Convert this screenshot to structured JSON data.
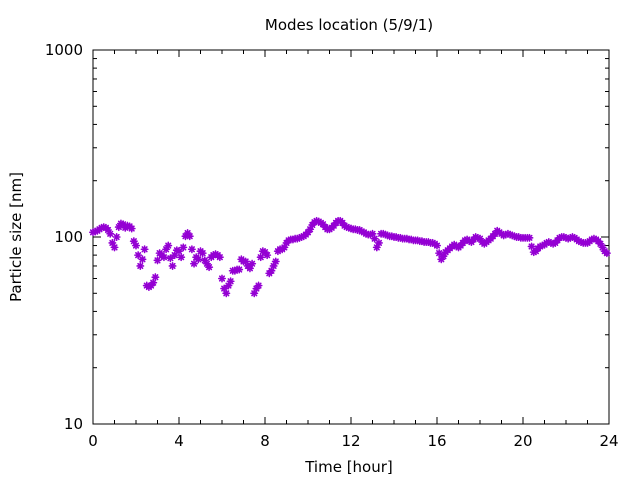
{
  "chart_data": {
    "type": "scatter",
    "title": "Modes location (5/9/1)",
    "xlabel": "Time [hour]",
    "ylabel": "Particle size [nm]",
    "xlim": [
      0,
      24
    ],
    "ylim": [
      10,
      1000
    ],
    "yscale": "log",
    "grid": false,
    "legend": "none",
    "marker": "asterisk",
    "color": "#9400d3",
    "x_ticks": [
      0,
      4,
      8,
      12,
      16,
      20,
      24
    ],
    "x_tick_labels": [
      "0",
      "4",
      "8",
      "12",
      "16",
      "20",
      "24"
    ],
    "y_ticks": [
      10,
      100,
      1000
    ],
    "y_tick_labels": [
      "10",
      "100",
      "1000"
    ],
    "series": [
      {
        "points": [
          [
            0.0,
            106
          ],
          [
            0.1,
            107
          ],
          [
            0.2,
            108
          ],
          [
            0.3,
            110
          ],
          [
            0.4,
            112
          ],
          [
            0.5,
            113
          ],
          [
            0.6,
            112
          ],
          [
            0.7,
            109
          ],
          [
            0.8,
            104
          ],
          [
            0.9,
            93
          ],
          [
            1.0,
            88
          ],
          [
            1.1,
            100
          ],
          [
            1.2,
            113
          ],
          [
            1.3,
            118
          ],
          [
            1.4,
            117
          ],
          [
            1.5,
            112
          ],
          [
            1.6,
            115
          ],
          [
            1.7,
            114
          ],
          [
            1.8,
            111
          ],
          [
            1.9,
            95
          ],
          [
            2.0,
            90
          ],
          [
            2.1,
            80
          ],
          [
            2.2,
            70
          ],
          [
            2.3,
            76
          ],
          [
            2.4,
            86
          ],
          [
            2.5,
            55
          ],
          [
            2.6,
            54
          ],
          [
            2.7,
            55
          ],
          [
            2.8,
            57
          ],
          [
            2.9,
            61
          ],
          [
            3.0,
            75
          ],
          [
            3.1,
            82
          ],
          [
            3.2,
            80
          ],
          [
            3.3,
            78
          ],
          [
            3.4,
            86
          ],
          [
            3.5,
            90
          ],
          [
            3.6,
            77
          ],
          [
            3.7,
            70
          ],
          [
            3.8,
            80
          ],
          [
            3.9,
            85
          ],
          [
            4.0,
            84
          ],
          [
            4.1,
            78
          ],
          [
            4.2,
            88
          ],
          [
            4.3,
            101
          ],
          [
            4.4,
            105
          ],
          [
            4.5,
            101
          ],
          [
            4.6,
            86
          ],
          [
            4.7,
            72
          ],
          [
            4.8,
            78
          ],
          [
            4.9,
            76
          ],
          [
            5.0,
            84
          ],
          [
            5.1,
            82
          ],
          [
            5.2,
            75
          ],
          [
            5.3,
            72
          ],
          [
            5.4,
            69
          ],
          [
            5.5,
            78
          ],
          [
            5.6,
            80
          ],
          [
            5.7,
            81
          ],
          [
            5.8,
            80
          ],
          [
            5.9,
            78
          ],
          [
            6.0,
            60
          ],
          [
            6.1,
            53
          ],
          [
            6.2,
            50
          ],
          [
            6.3,
            55
          ],
          [
            6.4,
            58
          ],
          [
            6.5,
            66
          ],
          [
            6.6,
            66
          ],
          [
            6.7,
            67
          ],
          [
            6.8,
            67
          ],
          [
            6.9,
            76
          ],
          [
            7.0,
            74
          ],
          [
            7.1,
            74
          ],
          [
            7.2,
            70
          ],
          [
            7.3,
            68
          ],
          [
            7.4,
            72
          ],
          [
            7.5,
            50
          ],
          [
            7.6,
            53
          ],
          [
            7.7,
            55
          ],
          [
            7.8,
            78
          ],
          [
            7.9,
            84
          ],
          [
            8.0,
            83
          ],
          [
            8.1,
            80
          ],
          [
            8.2,
            64
          ],
          [
            8.3,
            66
          ],
          [
            8.4,
            70
          ],
          [
            8.5,
            74
          ],
          [
            8.6,
            84
          ],
          [
            8.7,
            86
          ],
          [
            8.8,
            86
          ],
          [
            8.9,
            88
          ],
          [
            9.0,
            93
          ],
          [
            9.1,
            96
          ],
          [
            9.2,
            97
          ],
          [
            9.3,
            97
          ],
          [
            9.4,
            98
          ],
          [
            9.5,
            98
          ],
          [
            9.6,
            99
          ],
          [
            9.7,
            100
          ],
          [
            9.8,
            101
          ],
          [
            9.9,
            103
          ],
          [
            10.0,
            106
          ],
          [
            10.1,
            110
          ],
          [
            10.2,
            116
          ],
          [
            10.3,
            120
          ],
          [
            10.4,
            122
          ],
          [
            10.5,
            121
          ],
          [
            10.6,
            119
          ],
          [
            10.7,
            117
          ],
          [
            10.8,
            113
          ],
          [
            10.9,
            110
          ],
          [
            11.0,
            110
          ],
          [
            11.1,
            112
          ],
          [
            11.2,
            115
          ],
          [
            11.3,
            119
          ],
          [
            11.4,
            122
          ],
          [
            11.5,
            122
          ],
          [
            11.6,
            119
          ],
          [
            11.7,
            115
          ],
          [
            11.8,
            113
          ],
          [
            11.9,
            112
          ],
          [
            12.0,
            111
          ],
          [
            12.1,
            110
          ],
          [
            12.2,
            110
          ],
          [
            12.3,
            109
          ],
          [
            12.4,
            109
          ],
          [
            12.5,
            107
          ],
          [
            12.6,
            106
          ],
          [
            12.7,
            104
          ],
          [
            12.8,
            103
          ],
          [
            12.9,
            103
          ],
          [
            13.0,
            104
          ],
          [
            13.1,
            98
          ],
          [
            13.2,
            88
          ],
          [
            13.3,
            93
          ],
          [
            13.4,
            104
          ],
          [
            13.5,
            104
          ],
          [
            13.6,
            103
          ],
          [
            13.7,
            102
          ],
          [
            13.8,
            101
          ],
          [
            13.9,
            101
          ],
          [
            14.0,
            100
          ],
          [
            14.1,
            100
          ],
          [
            14.2,
            99
          ],
          [
            14.3,
            99
          ],
          [
            14.4,
            98
          ],
          [
            14.5,
            98
          ],
          [
            14.6,
            98
          ],
          [
            14.7,
            97
          ],
          [
            14.8,
            97
          ],
          [
            14.9,
            96
          ],
          [
            15.0,
            96
          ],
          [
            15.1,
            96
          ],
          [
            15.2,
            95
          ],
          [
            15.3,
            95
          ],
          [
            15.4,
            94
          ],
          [
            15.5,
            94
          ],
          [
            15.6,
            94
          ],
          [
            15.7,
            93
          ],
          [
            15.8,
            93
          ],
          [
            15.9,
            92
          ],
          [
            16.0,
            90
          ],
          [
            16.1,
            82
          ],
          [
            16.2,
            76
          ],
          [
            16.3,
            79
          ],
          [
            16.4,
            83
          ],
          [
            16.5,
            85
          ],
          [
            16.6,
            87
          ],
          [
            16.7,
            89
          ],
          [
            16.8,
            91
          ],
          [
            16.9,
            89
          ],
          [
            17.0,
            88
          ],
          [
            17.1,
            90
          ],
          [
            17.2,
            93
          ],
          [
            17.3,
            96
          ],
          [
            17.4,
            97
          ],
          [
            17.5,
            95
          ],
          [
            17.6,
            94
          ],
          [
            17.7,
            97
          ],
          [
            17.8,
            100
          ],
          [
            17.9,
            99
          ],
          [
            18.0,
            98
          ],
          [
            18.1,
            94
          ],
          [
            18.2,
            92
          ],
          [
            18.3,
            94
          ],
          [
            18.4,
            96
          ],
          [
            18.5,
            98
          ],
          [
            18.6,
            101
          ],
          [
            18.7,
            104
          ],
          [
            18.8,
            108
          ],
          [
            18.9,
            106
          ],
          [
            19.0,
            104
          ],
          [
            19.1,
            102
          ],
          [
            19.2,
            103
          ],
          [
            19.3,
            104
          ],
          [
            19.4,
            103
          ],
          [
            19.5,
            102
          ],
          [
            19.6,
            101
          ],
          [
            19.7,
            100
          ],
          [
            19.8,
            100
          ],
          [
            19.9,
            99
          ],
          [
            20.0,
            99
          ],
          [
            20.1,
            99
          ],
          [
            20.2,
            99
          ],
          [
            20.3,
            99
          ],
          [
            20.4,
            89
          ],
          [
            20.5,
            83
          ],
          [
            20.6,
            84
          ],
          [
            20.7,
            87
          ],
          [
            20.8,
            89
          ],
          [
            20.9,
            90
          ],
          [
            21.0,
            91
          ],
          [
            21.1,
            93
          ],
          [
            21.2,
            94
          ],
          [
            21.3,
            93
          ],
          [
            21.4,
            92
          ],
          [
            21.5,
            93
          ],
          [
            21.6,
            96
          ],
          [
            21.7,
            99
          ],
          [
            21.8,
            100
          ],
          [
            21.9,
            100
          ],
          [
            22.0,
            99
          ],
          [
            22.1,
            98
          ],
          [
            22.2,
            99
          ],
          [
            22.3,
            100
          ],
          [
            22.4,
            99
          ],
          [
            22.5,
            97
          ],
          [
            22.6,
            95
          ],
          [
            22.7,
            94
          ],
          [
            22.8,
            93
          ],
          [
            22.9,
            93
          ],
          [
            23.0,
            93
          ],
          [
            23.1,
            95
          ],
          [
            23.2,
            97
          ],
          [
            23.3,
            98
          ],
          [
            23.4,
            97
          ],
          [
            23.5,
            95
          ],
          [
            23.6,
            92
          ],
          [
            23.7,
            88
          ],
          [
            23.8,
            84
          ],
          [
            23.9,
            82
          ]
        ]
      }
    ]
  }
}
